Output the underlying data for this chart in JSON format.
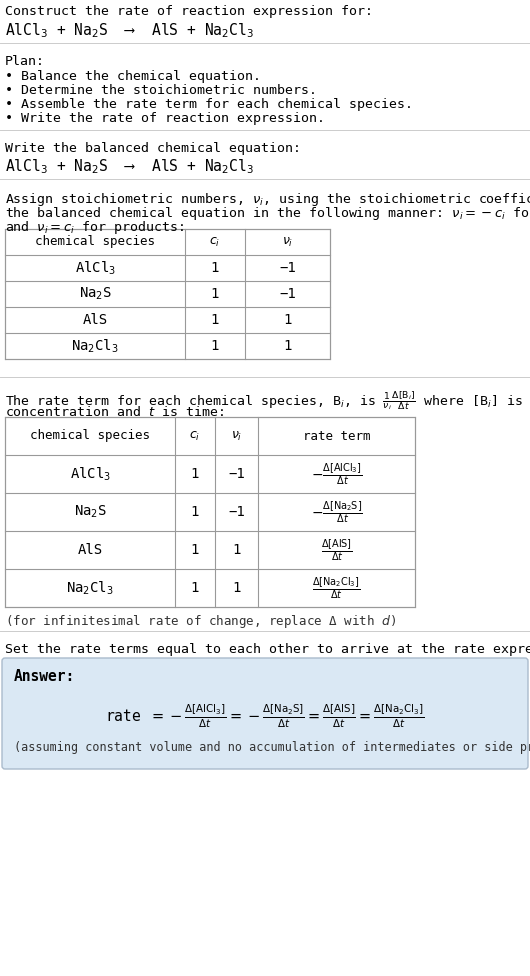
{
  "bg_color": "#ffffff",
  "text_color": "#000000",
  "title_text": "Construct the rate of reaction expression for:",
  "reaction_line": "AlCl$_3$ + Na$_2$S  ⟶  AlS + Na$_2$Cl$_3$",
  "plan_header": "Plan:",
  "plan_bullets": [
    "• Balance the chemical equation.",
    "• Determine the stoichiometric numbers.",
    "• Assemble the rate term for each chemical species.",
    "• Write the rate of reaction expression."
  ],
  "balanced_header": "Write the balanced chemical equation:",
  "balanced_eq": "AlCl$_3$ + Na$_2$S  ⟶  AlS + Na$_2$Cl$_3$",
  "stoich_intro1": "Assign stoichiometric numbers, $\\nu_i$, using the stoichiometric coefficients, $c_i$, from",
  "stoich_intro2": "the balanced chemical equation in the following manner: $\\nu_i = -c_i$ for reactants",
  "stoich_intro3": "and $\\nu_i = c_i$ for products:",
  "table1_headers": [
    "chemical species",
    "$c_i$",
    "$\\nu_i$"
  ],
  "table1_species": [
    "AlCl$_3$",
    "Na$_2$S",
    "AlS",
    "Na$_2$Cl$_3$"
  ],
  "table1_ci": [
    "1",
    "1",
    "1",
    "1"
  ],
  "table1_vi": [
    "−1",
    "−1",
    "1",
    "1"
  ],
  "rate_intro1": "The rate term for each chemical species, B$_i$, is $\\frac{1}{\\nu_i}\\frac{\\Delta[\\mathrm{B}_i]}{\\Delta t}$ where [B$_i$] is the amount",
  "rate_intro2": "concentration and $t$ is time:",
  "table2_headers": [
    "chemical species",
    "$c_i$",
    "$\\nu_i$",
    "rate term"
  ],
  "table2_species": [
    "AlCl$_3$",
    "Na$_2$S",
    "AlS",
    "Na$_2$Cl$_3$"
  ],
  "table2_ci": [
    "1",
    "1",
    "1",
    "1"
  ],
  "table2_vi": [
    "−1",
    "−1",
    "1",
    "1"
  ],
  "infinitesimal_note": "(for infinitesimal rate of change, replace Δ with $d$)",
  "set_equal_text": "Set the rate terms equal to each other to arrive at the rate expression:",
  "answer_label": "Answer:",
  "answer_box_color": "#dae8f4",
  "assuming_note": "(assuming constant volume and no accumulation of intermediates or side products)",
  "mono_font": "DejaVu Sans Mono",
  "serif_font": "DejaVu Serif",
  "line_color": "#cccccc",
  "table_line_color": "#999999"
}
